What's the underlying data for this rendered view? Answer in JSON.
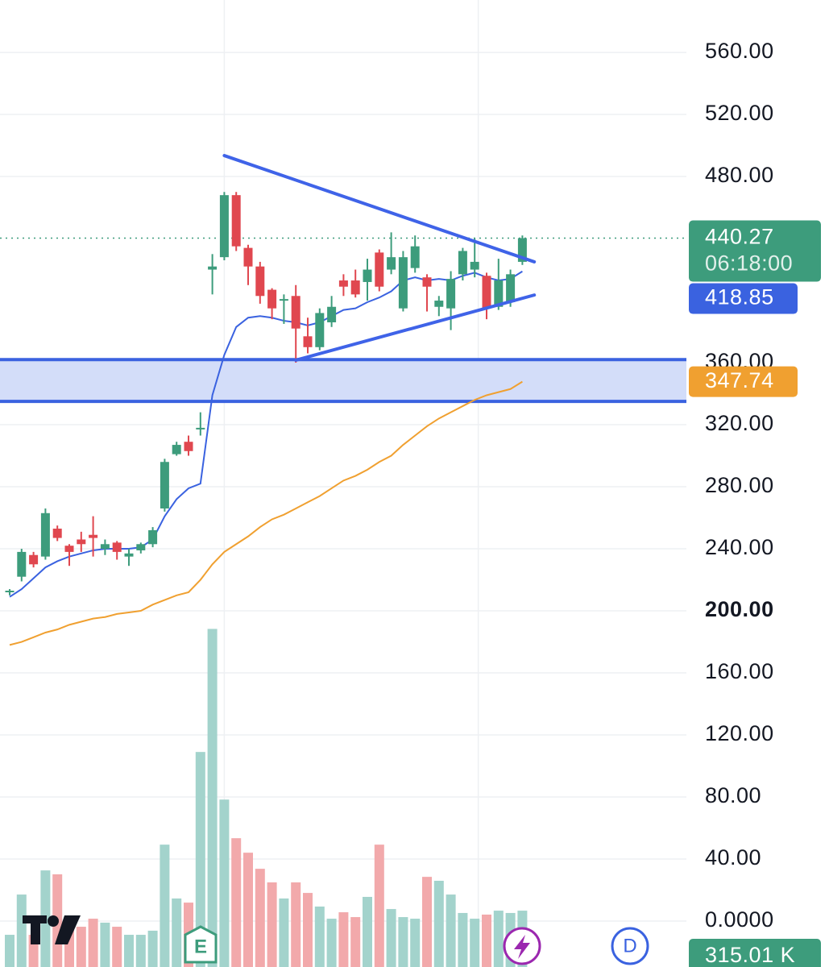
{
  "chart_data": {
    "type": "candlestick",
    "ylim": [
      -29.6,
      593.8
    ],
    "yticks": [
      {
        "value": 0,
        "label": "0.0000"
      },
      {
        "value": 40,
        "label": "40.00"
      },
      {
        "value": 80,
        "label": "80.00"
      },
      {
        "value": 120,
        "label": "120.00"
      },
      {
        "value": 160,
        "label": "160.00"
      },
      {
        "value": 200,
        "label": "200.00",
        "bold": true
      },
      {
        "value": 240,
        "label": "240.00"
      },
      {
        "value": 280,
        "label": "280.00"
      },
      {
        "value": 320,
        "label": "320.00"
      },
      {
        "value": 360,
        "label": "360.00"
      },
      {
        "value": 480,
        "label": "480.00"
      },
      {
        "value": 520,
        "label": "520.00"
      },
      {
        "value": 560,
        "label": "560.00"
      }
    ],
    "grid": true,
    "up_color": "#3d9c7c",
    "down_color": "#e0474f",
    "candles": {
      "open": [
        212,
        222,
        236,
        235,
        253,
        242,
        246,
        249,
        240,
        244,
        235,
        239,
        243,
        266,
        301,
        309,
        317,
        420,
        428,
        468,
        434,
        422,
        407,
        400,
        403,
        377,
        370,
        386,
        413,
        413,
        412,
        431,
        420,
        395,
        421,
        415,
        396,
        395,
        417,
        420,
        416,
        396,
        399,
        425
      ],
      "high": [
        214,
        240,
        238,
        266,
        255,
        243,
        251,
        261,
        246,
        245,
        240,
        244,
        254,
        298,
        309,
        313,
        328,
        430,
        470,
        470,
        436,
        425,
        408,
        404,
        410,
        389,
        395,
        403,
        417,
        420,
        427,
        433,
        444,
        432,
        442,
        417,
        403,
        419,
        434,
        440,
        418,
        427,
        420,
        442
      ],
      "low": [
        210,
        219,
        228,
        233,
        245,
        229,
        238,
        235,
        236,
        233,
        229,
        237,
        241,
        264,
        300,
        300,
        313,
        404,
        426,
        432,
        410,
        398,
        388,
        385,
        360,
        366,
        368,
        383,
        403,
        402,
        400,
        406,
        417,
        393,
        418,
        393,
        390,
        381,
        413,
        415,
        388,
        394,
        396,
        423
      ],
      "close": [
        213,
        238,
        230,
        263,
        247,
        238,
        243,
        247,
        243,
        238,
        237,
        243,
        252,
        296,
        307,
        303,
        318,
        422,
        468,
        435,
        422,
        403,
        395,
        401,
        382,
        370,
        392,
        396,
        409,
        404,
        420,
        409,
        428,
        428,
        435,
        409,
        400,
        414,
        432,
        425,
        395,
        413,
        417,
        440.27
      ]
    },
    "countdown": "06:18:00",
    "volume": {
      "vlim": [
        0,
        2000
      ],
      "up_color": "#a3d3cc",
      "down_color": "#f2a9ab",
      "badge_color": "#3d9c7c",
      "values": [
        180,
        405,
        180,
        540,
        518,
        270,
        225,
        270,
        248,
        225,
        180,
        180,
        203,
        684,
        383,
        360,
        1202,
        1890,
        936,
        720,
        639,
        549,
        473,
        383,
        473,
        414,
        338,
        270,
        306,
        279,
        392,
        684,
        324,
        279,
        270,
        504,
        482,
        405,
        302,
        270,
        293,
        315,
        302,
        315.01
      ],
      "last_value_label": "315.01 K"
    },
    "series": [
      {
        "name": "MA fast",
        "color": "#3a62e0",
        "width": 2,
        "values": [
          209,
          214,
          221,
          228,
          232,
          235,
          237,
          239,
          240,
          240,
          240,
          241,
          246,
          261,
          272,
          279,
          282,
          339,
          365,
          383,
          389,
          390,
          389,
          387,
          386,
          384,
          386,
          390,
          394,
          395,
          399,
          402,
          406,
          413,
          415,
          413,
          414,
          413,
          416,
          418,
          415,
          413,
          414,
          418.85
        ]
      },
      {
        "name": "MA slow",
        "color": "#f0a030",
        "width": 2,
        "values": [
          178,
          180,
          183,
          186,
          188,
          191,
          193,
          195,
          196,
          198,
          199,
          200,
          204,
          207,
          210,
          212,
          220,
          230,
          238,
          243,
          248,
          254,
          259,
          262,
          266,
          270,
          274,
          279,
          284,
          287,
          291,
          296,
          300,
          307,
          313,
          319,
          324,
          328,
          332,
          336,
          339,
          341,
          343,
          347.74
        ]
      }
    ],
    "zone": {
      "bottom": 335,
      "top": 362,
      "color": "#3a62e0",
      "fill": "#d3ddf9"
    },
    "trendlines": [
      {
        "from": [
          18,
          493.5
        ],
        "to": [
          44,
          425
        ]
      },
      {
        "from": [
          24,
          361.6
        ],
        "to": [
          44,
          403.6
        ]
      }
    ],
    "vlines": [
      18,
      39.3
    ],
    "earnings_marker": "E",
    "dividend_marker": "D"
  }
}
